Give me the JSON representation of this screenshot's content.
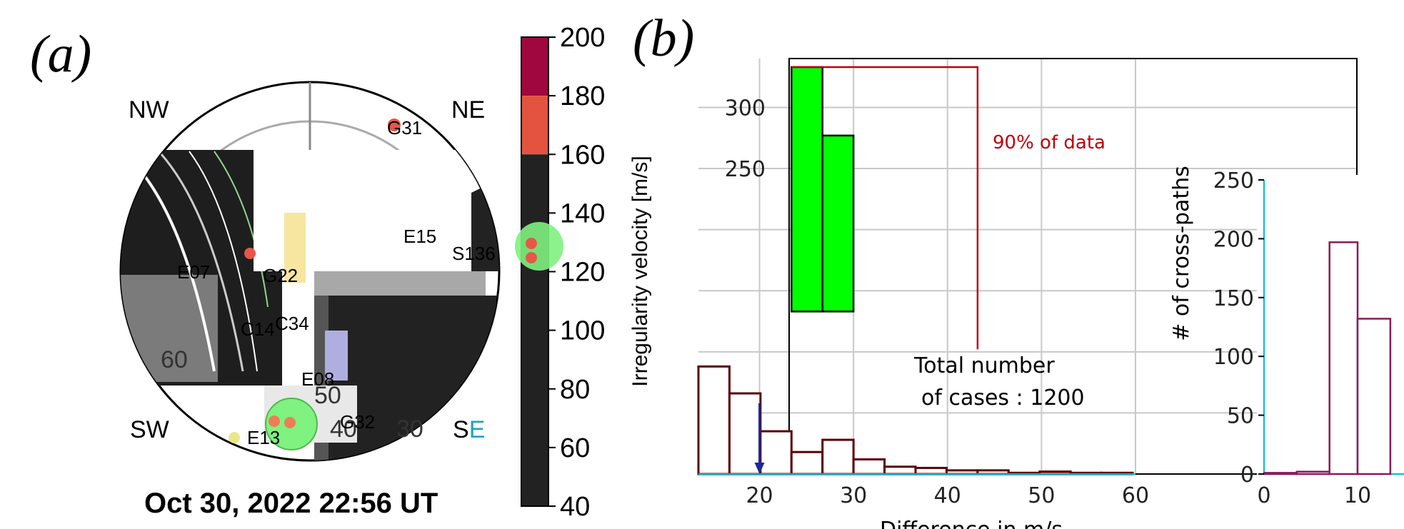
{
  "panels": [
    {
      "label": "(a)",
      "type": "skymap",
      "directions": {
        "nw": "NW",
        "ne": "NE",
        "sw": "SW",
        "se_s": "S",
        "se_e": "E"
      },
      "ring_labels": [
        "60",
        "50",
        "40",
        "30"
      ],
      "satellites": [
        {
          "id": "G31",
          "color": "#e8564a"
        },
        {
          "id": "E15"
        },
        {
          "id": "S136",
          "color": "#e8564a"
        },
        {
          "id": "E07",
          "color": "#e8564a"
        },
        {
          "id": "G22"
        },
        {
          "id": "C14"
        },
        {
          "id": "C34"
        },
        {
          "id": "E08"
        },
        {
          "id": "G32",
          "color": "#f07b5a"
        },
        {
          "id": "E13",
          "color": "#e8e88a"
        }
      ],
      "colorbar": {
        "title": "Irregularity velocity [m/s]",
        "ticks": [
          200,
          180,
          160,
          140,
          120,
          100,
          80,
          60,
          40
        ],
        "range": [
          40,
          200
        ],
        "segments": [
          {
            "from": 180,
            "to": 200,
            "color": "#a0073f"
          },
          {
            "from": 160,
            "to": 180,
            "color": "#e3533f"
          },
          {
            "from": 40,
            "to": 160,
            "color": "#222222"
          }
        ]
      },
      "timestamp": "Oct 30, 2022 22:56 UT",
      "colors": {
        "cross_path_circle": "#7ff27f",
        "bar_yellow": "#f7e6a0",
        "bar_purple": "#b0aee0",
        "band_gray": "#a8a8a8"
      }
    }
  ],
  "chart_data": [
    {
      "type": "bar",
      "panel": "(b)",
      "title": "",
      "xlabel": "Difference in m/s",
      "ylabel": "",
      "xlim": [
        13.5,
        60
      ],
      "ylim": [
        0,
        340
      ],
      "xticks": [
        20,
        30,
        40,
        50,
        60
      ],
      "yticks": [
        250,
        300
      ],
      "grid": true,
      "bin_edges": [
        13.5,
        16.8,
        20.1,
        23.4,
        26.7,
        30.0,
        33.3,
        36.6,
        39.9,
        43.2,
        46.5,
        49.8,
        53.1,
        56.4,
        59.7
      ],
      "values": [
        88,
        66,
        35,
        18,
        28,
        12,
        6,
        5,
        3,
        3,
        1,
        2,
        1,
        1
      ],
      "highlight_values": {
        "bin_edges": [
          23.4,
          26.7,
          30.0
        ],
        "values": [
          333,
          277
        ]
      },
      "threshold_label": "90% of data",
      "threshold_x": 43.2,
      "marker_x": 20,
      "annotation": [
        "Total number",
        "of cases : 1200"
      ],
      "colors": {
        "highlight": "#00ff00",
        "bar_edge": "#5a0008",
        "threshold": "#c0000a",
        "marker": "#1a2a9a"
      }
    },
    {
      "type": "bar",
      "title": "",
      "xlabel": "",
      "ylabel": "# of cross-paths",
      "xlim": [
        0,
        14
      ],
      "ylim": [
        0,
        250
      ],
      "xticks": [
        0,
        10
      ],
      "yticks": [
        0,
        50,
        100,
        150,
        200,
        250
      ],
      "grid": false,
      "bin_edges": [
        0,
        3.5,
        7,
        10,
        13.5
      ],
      "values": [
        1,
        2,
        197,
        132
      ],
      "colors": {
        "bar_edge": "#8a1a5a",
        "axis_left": "#00bcd4"
      }
    }
  ]
}
